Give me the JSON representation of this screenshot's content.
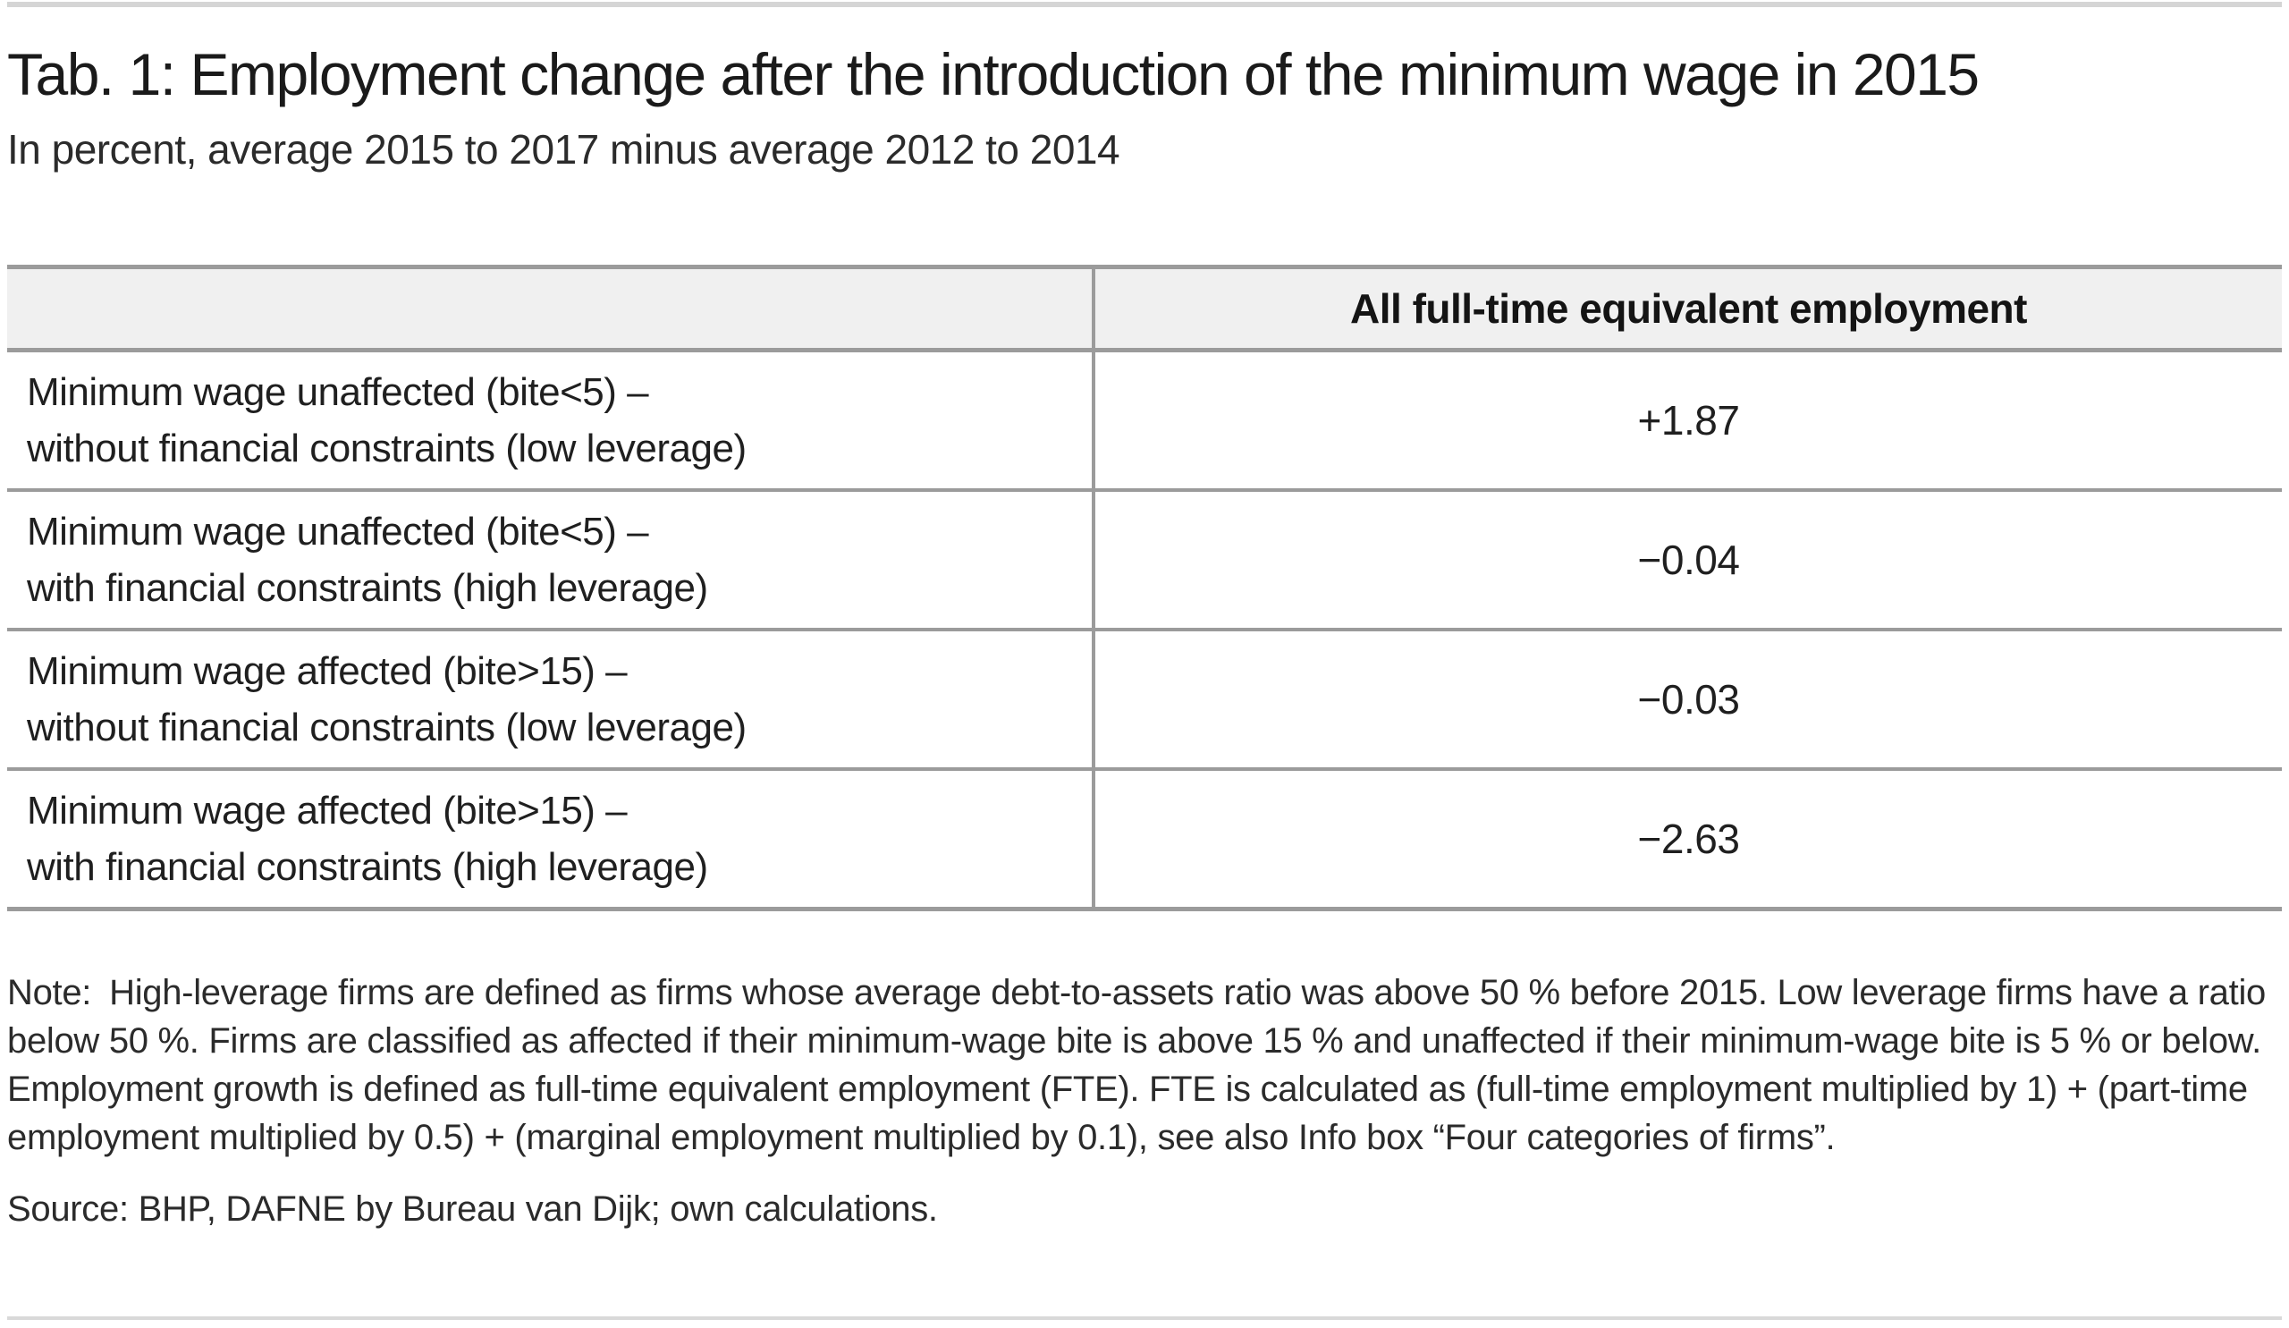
{
  "page": {
    "title": "Tab. 1: Employment change after the introduction of the minimum wage in 2015",
    "subtitle": "In percent, average 2015 to 2017 minus average 2012 to 2014"
  },
  "table": {
    "value_column_header": "All full-time equivalent employment",
    "rows": [
      {
        "label_line1": "Minimum wage unaffected (bite<5) –",
        "label_line2": "without financial constraints (low leverage)",
        "value": "+1.87"
      },
      {
        "label_line1": "Minimum wage unaffected (bite<5) –",
        "label_line2": "with financial constraints (high leverage)",
        "value": "−0.04"
      },
      {
        "label_line1": "Minimum wage affected (bite>15) –",
        "label_line2": "without financial constraints (low leverage)",
        "value": "−0.03"
      },
      {
        "label_line1": "Minimum wage affected (bite>15) –",
        "label_line2": "with financial constraints (high leverage)",
        "value": "−2.63"
      }
    ]
  },
  "note": {
    "label": "Note:",
    "text": "High-leverage firms are defined as firms whose average debt-to-assets ratio was above 50 % before 2015. Low leverage firms have a ratio below 50 %. Firms are classified as affected if their minimum-wage bite is above 15 % and unaffected if their minimum-wage bite is 5 % or below. Employment growth is defined as full-time equivalent employment (FTE). FTE is calculated as (full-time employment multiplied by 1) + (part-time employment multiplied by 0.5) + (marginal employment multiplied by 0.1), see also Info box “Four categories of firms”."
  },
  "source": {
    "text": "Source: BHP, DAFNE by Bureau van Dijk; own calculations."
  },
  "colors": {
    "table_border": "#9b9b9b",
    "header_background": "#f0f0f0",
    "rule_light_gray": "#d5d5d5",
    "text": "#1a1a1a"
  }
}
